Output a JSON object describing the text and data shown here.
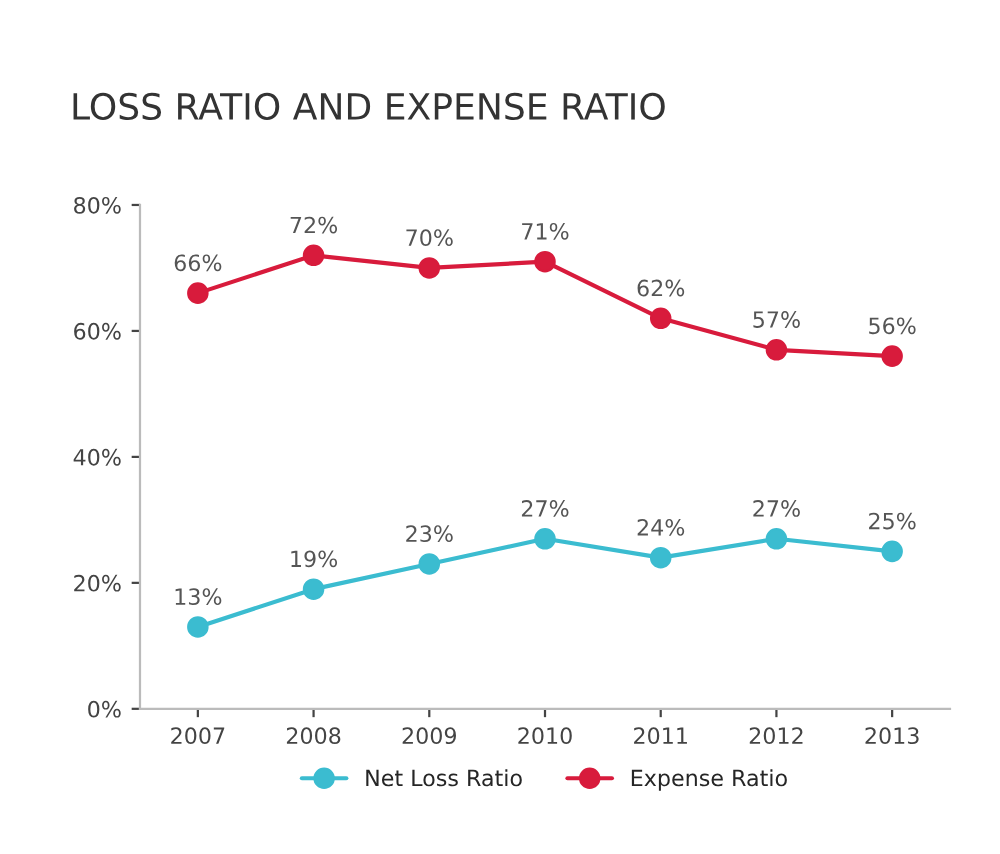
{
  "chart_data": {
    "type": "line",
    "title": "LOSS RATIO AND EXPENSE RATIO",
    "categories": [
      "2007",
      "2008",
      "2009",
      "2010",
      "2011",
      "2012",
      "2013"
    ],
    "series": [
      {
        "name": "Net Loss Ratio",
        "color": "#3bbcd0",
        "values": [
          13,
          19,
          23,
          27,
          24,
          27,
          25
        ],
        "value_labels": [
          "13%",
          "19%",
          "23%",
          "27%",
          "24%",
          "27%",
          "25%"
        ]
      },
      {
        "name": "Expense Ratio",
        "color": "#d81b3c",
        "values": [
          66,
          72,
          70,
          71,
          62,
          57,
          56
        ],
        "value_labels": [
          "66%",
          "72%",
          "70%",
          "71%",
          "62%",
          "57%",
          "56%"
        ]
      }
    ],
    "ylim": [
      0,
      80
    ],
    "yticks": [
      {
        "value": 0,
        "label": "0%"
      },
      {
        "value": 20,
        "label": "20%"
      },
      {
        "value": 40,
        "label": "40%"
      },
      {
        "value": 60,
        "label": "60%"
      },
      {
        "value": 80,
        "label": "80%"
      }
    ],
    "marker": "circle",
    "line_style": "solid",
    "legend": "bottom",
    "grid": false
  }
}
